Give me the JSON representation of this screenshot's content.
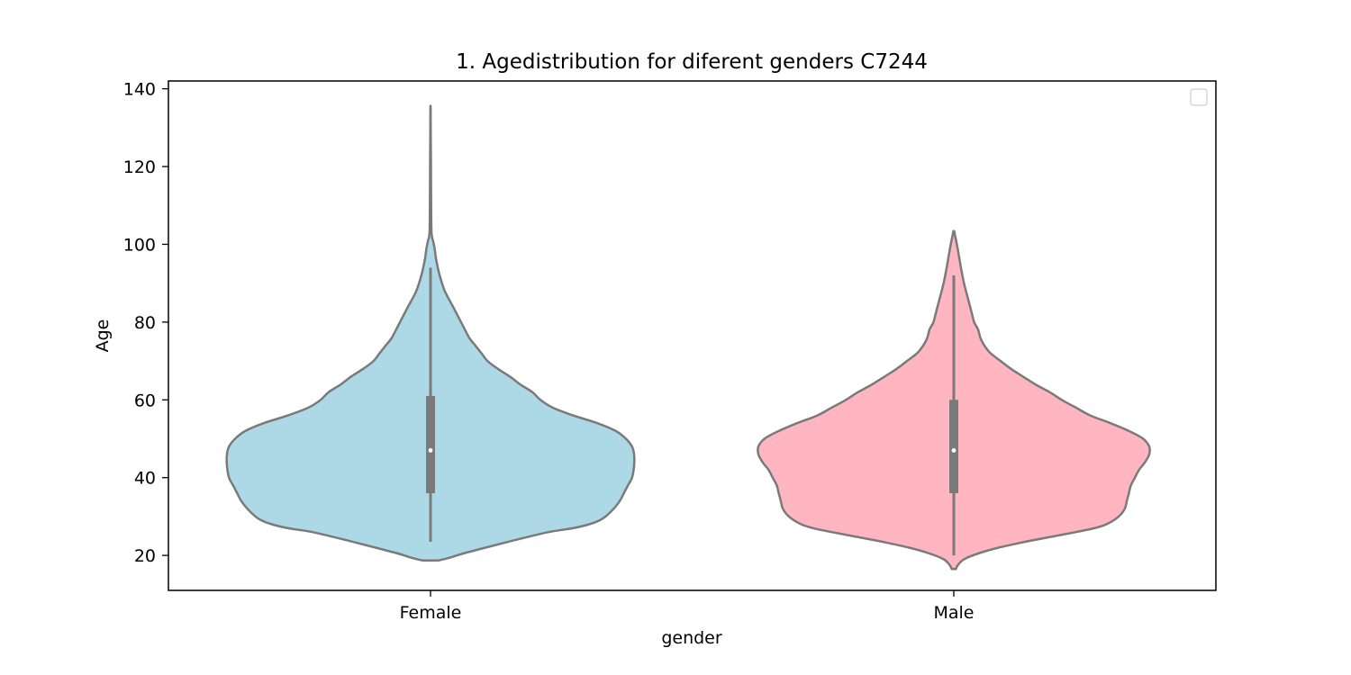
{
  "chart_data": {
    "type": "violin",
    "title": "1. Agedistribution for diferent genders C7244",
    "xlabel": "gender",
    "ylabel": "Age",
    "categories": [
      "Female",
      "Male"
    ],
    "ylim": [
      11,
      142
    ],
    "yticks": [
      20,
      40,
      60,
      80,
      100,
      120,
      140
    ],
    "grid": false,
    "legend": {
      "position": "top-right",
      "entries": []
    },
    "colors": {
      "Female": "#add8e6",
      "Male": "#ffb6c1",
      "outline": "#7a7a7a",
      "box": "#7a7a7a"
    },
    "violins": [
      {
        "category": "Female",
        "whisker": [
          23.5,
          94
        ],
        "q1": 36,
        "q3": 61,
        "median": 47,
        "profile": [
          [
            18.7,
            0.04
          ],
          [
            19.5,
            0.1
          ],
          [
            20.5,
            0.16
          ],
          [
            22,
            0.27
          ],
          [
            24,
            0.42
          ],
          [
            26,
            0.58
          ],
          [
            27,
            0.7
          ],
          [
            28,
            0.78
          ],
          [
            29,
            0.83
          ],
          [
            30,
            0.86
          ],
          [
            32,
            0.9
          ],
          [
            34,
            0.93
          ],
          [
            36,
            0.95
          ],
          [
            38,
            0.97
          ],
          [
            40,
            0.99
          ],
          [
            43,
            1.0
          ],
          [
            46,
            1.0
          ],
          [
            48,
            0.99
          ],
          [
            50,
            0.96
          ],
          [
            52,
            0.91
          ],
          [
            54,
            0.82
          ],
          [
            56,
            0.7
          ],
          [
            58,
            0.6
          ],
          [
            60,
            0.54
          ],
          [
            62,
            0.5
          ],
          [
            64,
            0.44
          ],
          [
            66,
            0.39
          ],
          [
            68,
            0.33
          ],
          [
            70,
            0.28
          ],
          [
            72,
            0.25
          ],
          [
            74,
            0.22
          ],
          [
            76,
            0.19
          ],
          [
            80,
            0.15
          ],
          [
            84,
            0.11
          ],
          [
            88,
            0.07
          ],
          [
            92,
            0.045
          ],
          [
            96,
            0.028
          ],
          [
            99,
            0.02
          ],
          [
            101,
            0.012
          ],
          [
            103,
            0.005
          ],
          [
            110,
            0.003
          ],
          [
            120,
            0.002
          ],
          [
            130,
            0.001
          ],
          [
            135,
            0.0005
          ]
        ]
      },
      {
        "category": "Male",
        "whisker": [
          20,
          92
        ],
        "q1": 36,
        "q3": 60,
        "median": 47,
        "profile": [
          [
            16.5,
            0.01
          ],
          [
            17.5,
            0.02
          ],
          [
            19,
            0.05
          ],
          [
            20.5,
            0.12
          ],
          [
            22,
            0.22
          ],
          [
            23.5,
            0.35
          ],
          [
            25,
            0.5
          ],
          [
            26,
            0.6
          ],
          [
            27,
            0.69
          ],
          [
            28,
            0.75
          ],
          [
            30,
            0.81
          ],
          [
            32,
            0.84
          ],
          [
            34,
            0.85
          ],
          [
            36,
            0.86
          ],
          [
            38,
            0.87
          ],
          [
            40,
            0.89
          ],
          [
            42,
            0.91
          ],
          [
            44,
            0.94
          ],
          [
            46,
            0.96
          ],
          [
            48,
            0.96
          ],
          [
            50,
            0.93
          ],
          [
            52,
            0.86
          ],
          [
            54,
            0.77
          ],
          [
            56,
            0.67
          ],
          [
            58,
            0.6
          ],
          [
            60,
            0.53
          ],
          [
            62,
            0.47
          ],
          [
            64,
            0.4
          ],
          [
            66,
            0.34
          ],
          [
            68,
            0.28
          ],
          [
            70,
            0.23
          ],
          [
            72,
            0.18
          ],
          [
            74,
            0.15
          ],
          [
            76,
            0.13
          ],
          [
            78,
            0.12
          ],
          [
            80,
            0.1
          ],
          [
            82,
            0.09
          ],
          [
            86,
            0.07
          ],
          [
            90,
            0.05
          ],
          [
            94,
            0.035
          ],
          [
            97,
            0.025
          ],
          [
            100,
            0.015
          ],
          [
            102,
            0.007
          ],
          [
            103.3,
            0.002
          ]
        ]
      }
    ]
  }
}
